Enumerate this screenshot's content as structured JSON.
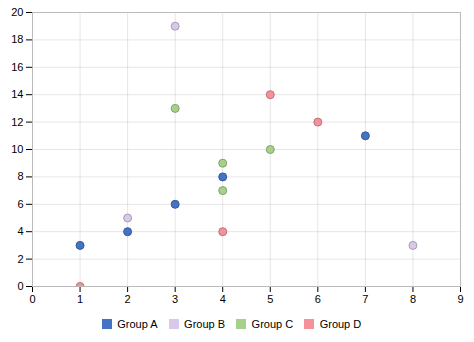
{
  "chart_data": {
    "type": "scatter",
    "series": [
      {
        "name": "Group A",
        "color": "#4472C4",
        "x": [
          1,
          2,
          3,
          4,
          7
        ],
        "values": [
          3,
          4,
          6,
          8,
          11
        ]
      },
      {
        "name": "Group B",
        "color": "#D9C8E8",
        "x": [
          2,
          3,
          8
        ],
        "values": [
          5,
          19,
          3
        ]
      },
      {
        "name": "Group C",
        "color": "#A8D08D",
        "x": [
          3,
          4,
          4,
          5
        ],
        "values": [
          13,
          9,
          7,
          10
        ]
      },
      {
        "name": "Group D",
        "color": "#F4929A",
        "x": [
          1,
          4,
          5,
          6
        ],
        "values": [
          0,
          4,
          14,
          12
        ]
      }
    ],
    "xlim": [
      0,
      9
    ],
    "ylim": [
      0,
      20
    ],
    "xticks": [
      0,
      1,
      2,
      3,
      4,
      5,
      6,
      7,
      8,
      9
    ],
    "yticks": [
      0,
      2,
      4,
      6,
      8,
      10,
      12,
      14,
      16,
      18,
      20
    ],
    "grid": true,
    "legend": "bottom"
  }
}
